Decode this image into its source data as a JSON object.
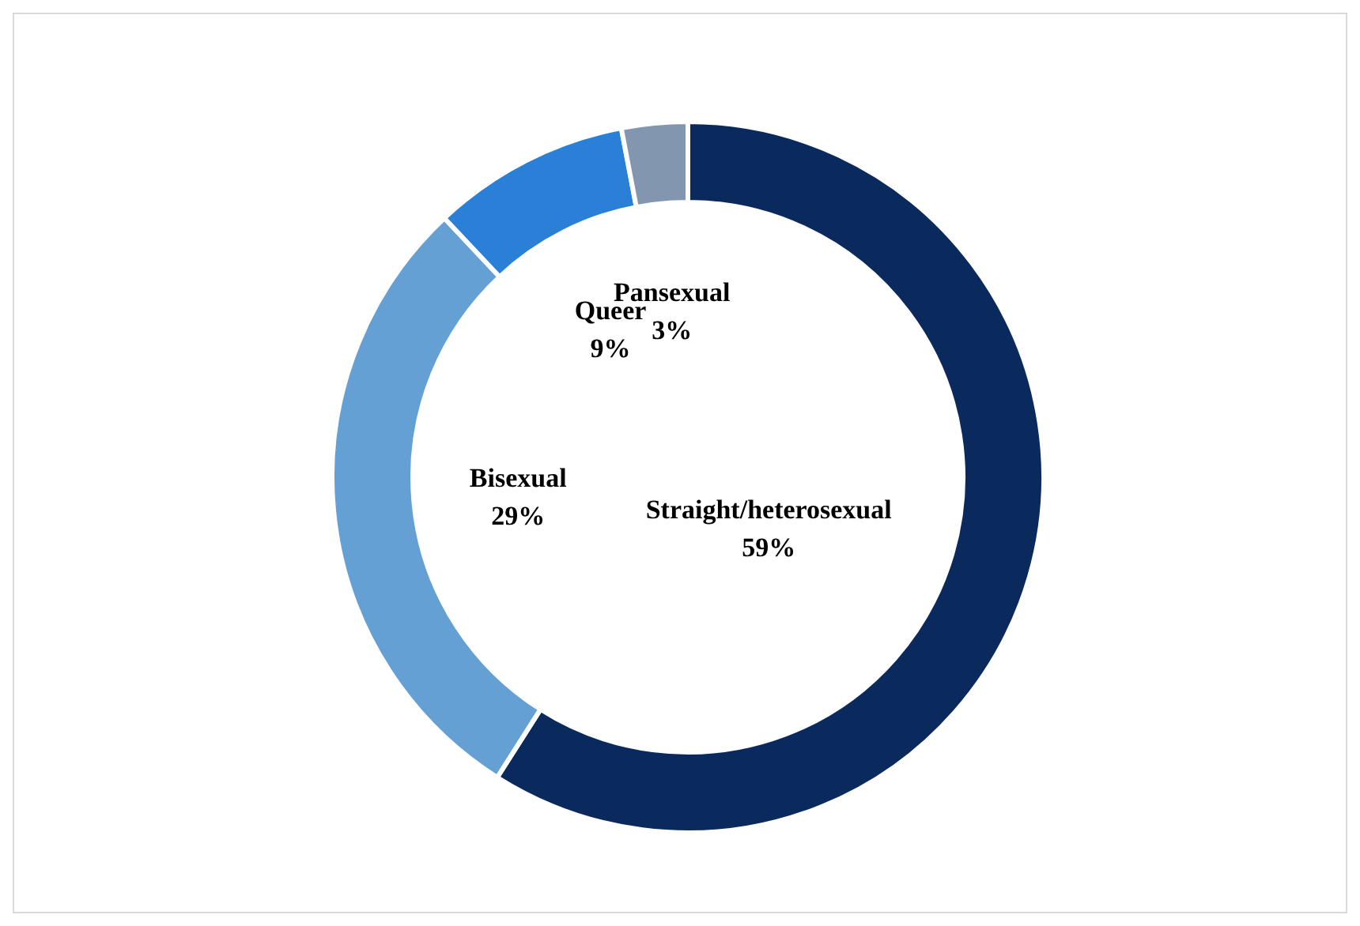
{
  "chart_data": {
    "type": "donut",
    "categories": [
      "Straight/heterosexual",
      "Bisexual",
      "Queer",
      "Pansexual"
    ],
    "values": [
      59,
      29,
      9,
      3
    ],
    "colors": [
      "#0a2a5e",
      "#64a0d4",
      "#2a7fd6",
      "#8396b0"
    ],
    "value_labels": [
      "59%",
      "29%",
      "9%",
      "3%"
    ]
  }
}
